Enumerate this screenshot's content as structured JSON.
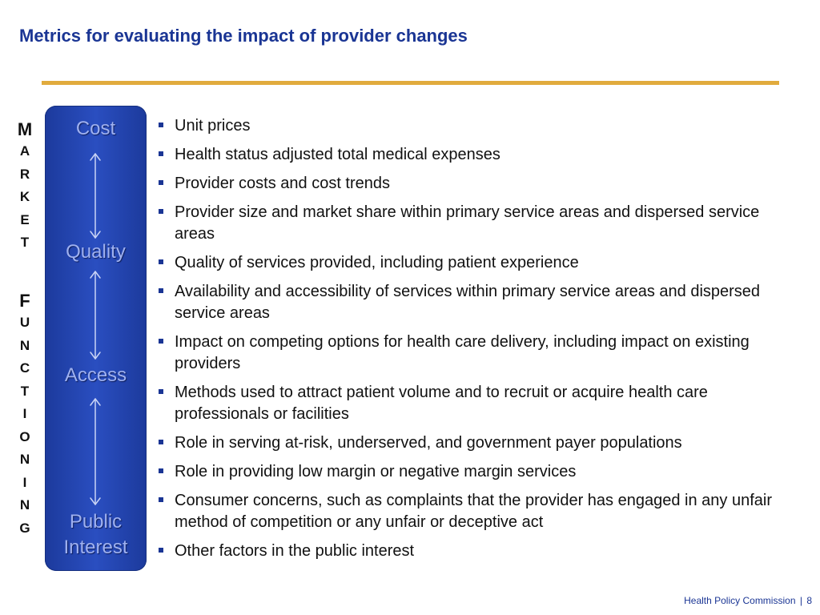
{
  "title": "Metrics for evaluating the impact of provider changes",
  "vertical_words": {
    "market": [
      "M",
      "A",
      "R",
      "K",
      "E",
      "T"
    ],
    "functioning": [
      "F",
      "U",
      "N",
      "C",
      "T",
      "I",
      "O",
      "N",
      "I",
      "N",
      "G"
    ]
  },
  "panel": {
    "cost": "Cost",
    "quality": "Quality",
    "access": "Access",
    "public": "Public",
    "interest": "Interest"
  },
  "bullets": [
    "Unit prices",
    "Health status adjusted total medical expenses",
    "Provider costs and cost trends",
    "Provider size and market share within primary service areas and dispersed service areas",
    "Quality of services provided, including patient experience",
    "Availability and accessibility of services within primary service areas and dispersed service areas",
    "Impact on competing options for health care delivery, including impact on existing providers",
    "Methods used to attract patient volume and to recruit or acquire health care professionals or facilities",
    "Role in serving at-risk, underserved, and government payer populations",
    "Role in providing low margin or negative margin services",
    "Consumer concerns, such as complaints that the provider has engaged in any unfair method of competition or any unfair or deceptive act",
    "Other factors in the public interest"
  ],
  "footer": {
    "org": "Health Policy  Commission",
    "separator": "|",
    "page": "8"
  },
  "colors": {
    "title": "#1a3594",
    "rule": "#e1ab3d",
    "panel": "#2a4ec0",
    "panel_text": "#9fb1f0"
  }
}
